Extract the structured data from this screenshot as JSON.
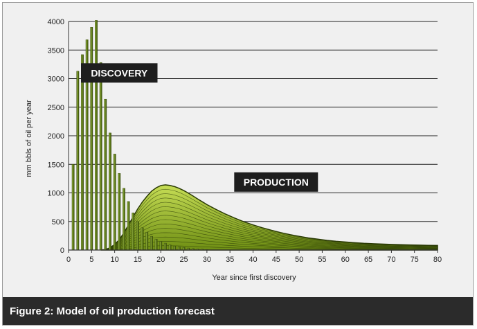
{
  "caption": "Figure 2: Model of oil production forecast",
  "colors": {
    "bar": "#6b8a1f",
    "bar_dark": "#3a4e0c",
    "production_fill": "#a7c43a",
    "production_line": "#2a3a05",
    "tag_bg": "#1e1e1e",
    "grid": "#222222"
  },
  "chart_data": {
    "type": "bar",
    "title": "",
    "xlabel": "Year since first discovery",
    "ylabel": "mm bbls of oil per year",
    "xlim": [
      0,
      80
    ],
    "ylim": [
      0,
      4000
    ],
    "x_ticks": [
      0,
      5,
      10,
      15,
      20,
      25,
      30,
      35,
      40,
      45,
      50,
      55,
      60,
      65,
      70,
      75,
      80
    ],
    "y_ticks": [
      0,
      500,
      1000,
      1500,
      2000,
      2500,
      3000,
      3500,
      4000
    ],
    "grid": true,
    "annotations": [
      {
        "label": "DISCOVERY",
        "x": 11,
        "y": 3100
      },
      {
        "label": "PRODUCTION",
        "x": 45,
        "y": 1190
      }
    ],
    "series": [
      {
        "type": "bar",
        "x": [
          1,
          2,
          3,
          4,
          5,
          6,
          7,
          8,
          9,
          10,
          11,
          12,
          13,
          14,
          15,
          16,
          17,
          18,
          19,
          20,
          21,
          22,
          23,
          24,
          25,
          26,
          27,
          28,
          29,
          30
        ],
        "values": [
          1500,
          3130,
          3420,
          3680,
          3900,
          4020,
          3280,
          2640,
          2050,
          1680,
          1340,
          1080,
          850,
          650,
          500,
          390,
          310,
          240,
          190,
          150,
          120,
          90,
          70,
          55,
          45,
          35,
          25,
          20,
          15,
          10
        ]
      },
      {
        "type": "area",
        "x": [
          7,
          8,
          9,
          10,
          11,
          12,
          13,
          14,
          15,
          16,
          17,
          18,
          19,
          20,
          21,
          22,
          23,
          24,
          25,
          26,
          27,
          28,
          29,
          30,
          32,
          34,
          36,
          38,
          40,
          42,
          44,
          46,
          48,
          50,
          52,
          54,
          56,
          58,
          60,
          62,
          64,
          66,
          68,
          70,
          72,
          74,
          76,
          78,
          80
        ],
        "values": [
          0,
          10,
          40,
          100,
          180,
          300,
          440,
          580,
          720,
          840,
          940,
          1030,
          1090,
          1130,
          1140,
          1130,
          1110,
          1080,
          1040,
          995,
          945,
          895,
          845,
          795,
          710,
          630,
          560,
          495,
          440,
          390,
          345,
          305,
          270,
          240,
          212,
          190,
          170,
          153,
          140,
          128,
          118,
          110,
          104,
          98,
          94,
          90,
          86,
          82,
          80
        ]
      }
    ]
  }
}
